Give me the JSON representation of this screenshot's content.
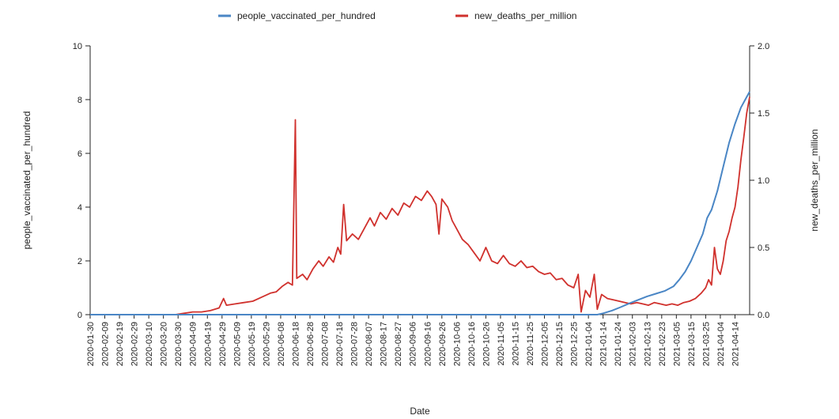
{
  "chart_data": {
    "type": "line",
    "xlabel": "Date",
    "ylabel_left": "people_vaccinated_per_hundred",
    "ylabel_right": "new_deaths_per_million",
    "ylim_left": [
      0,
      10
    ],
    "ylim_right": [
      0,
      2.0
    ],
    "yticks_left": [
      "0",
      "2",
      "4",
      "6",
      "8",
      "10"
    ],
    "yticks_right": [
      "0.0",
      "0.5",
      "1.0",
      "1.5",
      "2.0"
    ],
    "xrange": [
      "2020-01-30",
      "2021-04-24"
    ],
    "xticks": [
      "2020-01-30",
      "2020-02-09",
      "2020-02-19",
      "2020-02-29",
      "2020-03-10",
      "2020-03-20",
      "2020-03-30",
      "2020-04-09",
      "2020-04-19",
      "2020-04-29",
      "2020-05-09",
      "2020-05-19",
      "2020-05-29",
      "2020-06-08",
      "2020-06-18",
      "2020-06-28",
      "2020-07-08",
      "2020-07-18",
      "2020-07-28",
      "2020-08-07",
      "2020-08-17",
      "2020-08-27",
      "2020-09-06",
      "2020-09-16",
      "2020-09-26",
      "2020-10-06",
      "2020-10-16",
      "2020-10-26",
      "2020-11-05",
      "2020-11-15",
      "2020-11-25",
      "2020-12-05",
      "2020-12-15",
      "2020-12-25",
      "2021-01-04",
      "2021-01-14",
      "2021-01-24",
      "2021-02-03",
      "2021-02-13",
      "2021-02-23",
      "2021-03-05",
      "2021-03-15",
      "2021-03-25",
      "2021-04-04",
      "2021-04-14"
    ],
    "grid": false,
    "legend_position": "top-center",
    "series": [
      {
        "name": "people_vaccinated_per_hundred",
        "axis": "left",
        "color": "#4a86c5",
        "points": [
          [
            "2020-01-30",
            0
          ],
          [
            "2021-01-10",
            0
          ],
          [
            "2021-01-14",
            0.05
          ],
          [
            "2021-01-20",
            0.15
          ],
          [
            "2021-01-26",
            0.28
          ],
          [
            "2021-02-01",
            0.42
          ],
          [
            "2021-02-07",
            0.55
          ],
          [
            "2021-02-13",
            0.68
          ],
          [
            "2021-02-19",
            0.78
          ],
          [
            "2021-02-25",
            0.88
          ],
          [
            "2021-03-03",
            1.05
          ],
          [
            "2021-03-07",
            1.3
          ],
          [
            "2021-03-11",
            1.6
          ],
          [
            "2021-03-15",
            2.0
          ],
          [
            "2021-03-19",
            2.5
          ],
          [
            "2021-03-23",
            3.0
          ],
          [
            "2021-03-26",
            3.6
          ],
          [
            "2021-03-29",
            3.9
          ],
          [
            "2021-04-02",
            4.6
          ],
          [
            "2021-04-06",
            5.5
          ],
          [
            "2021-04-10",
            6.4
          ],
          [
            "2021-04-14",
            7.1
          ],
          [
            "2021-04-18",
            7.7
          ],
          [
            "2021-04-22",
            8.1
          ],
          [
            "2021-04-24",
            8.3
          ]
        ]
      },
      {
        "name": "new_deaths_per_million",
        "axis": "right",
        "color": "#d0312d",
        "points": [
          [
            "2020-01-30",
            0
          ],
          [
            "2020-03-28",
            0
          ],
          [
            "2020-04-03",
            0.01
          ],
          [
            "2020-04-09",
            0.02
          ],
          [
            "2020-04-15",
            0.02
          ],
          [
            "2020-04-21",
            0.03
          ],
          [
            "2020-04-27",
            0.05
          ],
          [
            "2020-04-30",
            0.12
          ],
          [
            "2020-05-02",
            0.07
          ],
          [
            "2020-05-08",
            0.08
          ],
          [
            "2020-05-14",
            0.09
          ],
          [
            "2020-05-20",
            0.1
          ],
          [
            "2020-05-26",
            0.13
          ],
          [
            "2020-06-01",
            0.16
          ],
          [
            "2020-06-05",
            0.17
          ],
          [
            "2020-06-09",
            0.21
          ],
          [
            "2020-06-13",
            0.24
          ],
          [
            "2020-06-16",
            0.22
          ],
          [
            "2020-06-18",
            1.45
          ],
          [
            "2020-06-19",
            0.27
          ],
          [
            "2020-06-23",
            0.3
          ],
          [
            "2020-06-26",
            0.26
          ],
          [
            "2020-06-30",
            0.34
          ],
          [
            "2020-07-04",
            0.4
          ],
          [
            "2020-07-07",
            0.36
          ],
          [
            "2020-07-11",
            0.43
          ],
          [
            "2020-07-14",
            0.39
          ],
          [
            "2020-07-17",
            0.5
          ],
          [
            "2020-07-19",
            0.45
          ],
          [
            "2020-07-21",
            0.82
          ],
          [
            "2020-07-23",
            0.55
          ],
          [
            "2020-07-27",
            0.6
          ],
          [
            "2020-07-31",
            0.56
          ],
          [
            "2020-08-04",
            0.64
          ],
          [
            "2020-08-08",
            0.72
          ],
          [
            "2020-08-11",
            0.66
          ],
          [
            "2020-08-15",
            0.76
          ],
          [
            "2020-08-19",
            0.71
          ],
          [
            "2020-08-23",
            0.79
          ],
          [
            "2020-08-27",
            0.74
          ],
          [
            "2020-08-31",
            0.83
          ],
          [
            "2020-09-04",
            0.8
          ],
          [
            "2020-09-08",
            0.88
          ],
          [
            "2020-09-12",
            0.85
          ],
          [
            "2020-09-16",
            0.92
          ],
          [
            "2020-09-19",
            0.88
          ],
          [
            "2020-09-22",
            0.82
          ],
          [
            "2020-09-24",
            0.6
          ],
          [
            "2020-09-26",
            0.86
          ],
          [
            "2020-09-30",
            0.8
          ],
          [
            "2020-10-03",
            0.7
          ],
          [
            "2020-10-07",
            0.62
          ],
          [
            "2020-10-10",
            0.56
          ],
          [
            "2020-10-14",
            0.52
          ],
          [
            "2020-10-18",
            0.46
          ],
          [
            "2020-10-22",
            0.4
          ],
          [
            "2020-10-26",
            0.5
          ],
          [
            "2020-10-30",
            0.4
          ],
          [
            "2020-11-03",
            0.38
          ],
          [
            "2020-11-07",
            0.44
          ],
          [
            "2020-11-11",
            0.38
          ],
          [
            "2020-11-15",
            0.36
          ],
          [
            "2020-11-19",
            0.4
          ],
          [
            "2020-11-23",
            0.35
          ],
          [
            "2020-11-27",
            0.36
          ],
          [
            "2020-12-01",
            0.32
          ],
          [
            "2020-12-05",
            0.3
          ],
          [
            "2020-12-09",
            0.31
          ],
          [
            "2020-12-13",
            0.26
          ],
          [
            "2020-12-17",
            0.27
          ],
          [
            "2020-12-21",
            0.22
          ],
          [
            "2020-12-25",
            0.2
          ],
          [
            "2020-12-28",
            0.3
          ],
          [
            "2020-12-30",
            0.02
          ],
          [
            "2021-01-02",
            0.18
          ],
          [
            "2021-01-05",
            0.13
          ],
          [
            "2021-01-08",
            0.3
          ],
          [
            "2021-01-10",
            0.04
          ],
          [
            "2021-01-13",
            0.15
          ],
          [
            "2021-01-17",
            0.12
          ],
          [
            "2021-01-21",
            0.11
          ],
          [
            "2021-01-25",
            0.1
          ],
          [
            "2021-01-29",
            0.09
          ],
          [
            "2021-02-02",
            0.08
          ],
          [
            "2021-02-06",
            0.09
          ],
          [
            "2021-02-10",
            0.08
          ],
          [
            "2021-02-14",
            0.07
          ],
          [
            "2021-02-18",
            0.09
          ],
          [
            "2021-02-22",
            0.08
          ],
          [
            "2021-02-26",
            0.07
          ],
          [
            "2021-03-02",
            0.08
          ],
          [
            "2021-03-06",
            0.07
          ],
          [
            "2021-03-10",
            0.09
          ],
          [
            "2021-03-14",
            0.1
          ],
          [
            "2021-03-18",
            0.12
          ],
          [
            "2021-03-22",
            0.16
          ],
          [
            "2021-03-25",
            0.2
          ],
          [
            "2021-03-27",
            0.26
          ],
          [
            "2021-03-29",
            0.22
          ],
          [
            "2021-03-31",
            0.5
          ],
          [
            "2021-04-02",
            0.34
          ],
          [
            "2021-04-04",
            0.3
          ],
          [
            "2021-04-06",
            0.4
          ],
          [
            "2021-04-08",
            0.55
          ],
          [
            "2021-04-10",
            0.62
          ],
          [
            "2021-04-12",
            0.72
          ],
          [
            "2021-04-14",
            0.8
          ],
          [
            "2021-04-16",
            0.95
          ],
          [
            "2021-04-18",
            1.15
          ],
          [
            "2021-04-20",
            1.32
          ],
          [
            "2021-04-22",
            1.5
          ],
          [
            "2021-04-24",
            1.62
          ]
        ]
      }
    ]
  }
}
